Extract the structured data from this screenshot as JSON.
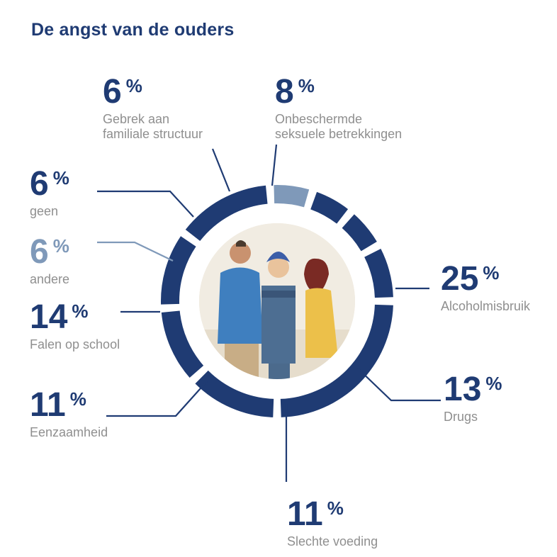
{
  "title": "De angst van de ouders",
  "colors": {
    "primary": "#1f3b73",
    "secondary": "#7f99b9",
    "label": "#8f8f8f"
  },
  "chart_data": {
    "type": "pie",
    "title": "De angst van de ouders",
    "unit": "%",
    "categories": [
      "Alcoholmisbruik",
      "Drugs",
      "Slechte voeding",
      "Eenzaamheid",
      "Falen op school",
      "andere",
      "geen",
      "Gebrek aan familiale structuur",
      "Onbeschermde seksuele betrekkingen"
    ],
    "values": [
      25,
      13,
      11,
      11,
      14,
      6,
      6,
      6,
      8
    ],
    "labels": [
      {
        "value": "25",
        "sym": "%",
        "text": [
          "Alcoholmisbruik"
        ]
      },
      {
        "value": "13",
        "sym": "%",
        "text": [
          "Drugs"
        ]
      },
      {
        "value": "11",
        "sym": "%",
        "text": [
          "Slechte voeding"
        ]
      },
      {
        "value": "11",
        "sym": "%",
        "text": [
          "Eenzaamheid"
        ]
      },
      {
        "value": "14",
        "sym": "%",
        "text": [
          "Falen op school"
        ]
      },
      {
        "value": "6",
        "sym": "%",
        "text": [
          "andere"
        ]
      },
      {
        "value": "6",
        "sym": "%",
        "text": [
          "geen"
        ]
      },
      {
        "value": "6",
        "sym": "%",
        "text": [
          "Gebrek aan",
          "familiale structuur"
        ]
      },
      {
        "value": "8",
        "sym": "%",
        "text": [
          "Onbeschermde",
          "seksuele betrekkingen"
        ]
      }
    ]
  },
  "photo": {
    "icon": "family-photo"
  }
}
